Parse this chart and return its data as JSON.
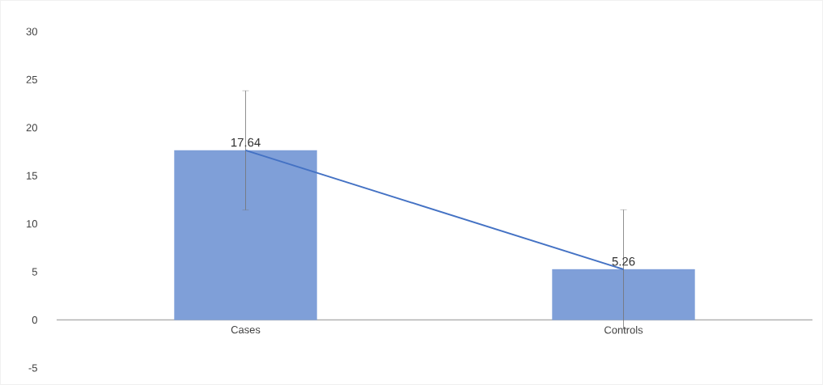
{
  "chart_data": {
    "type": "bar",
    "categories": [
      "Cases",
      "Controls"
    ],
    "series": [
      {
        "color": "#7f9fd8",
        "values": [
          17.64,
          5.26
        ],
        "errors": [
          6.2,
          6.2
        ],
        "value_labels": [
          "17.64",
          "5.26"
        ]
      },
      {
        "type": "line",
        "color": "#4472c4",
        "values": [
          17.64,
          5.26
        ]
      }
    ],
    "ylim": [
      -5,
      30
    ],
    "yticks": [
      -5,
      0,
      5,
      10,
      15,
      20,
      25,
      30
    ]
  }
}
